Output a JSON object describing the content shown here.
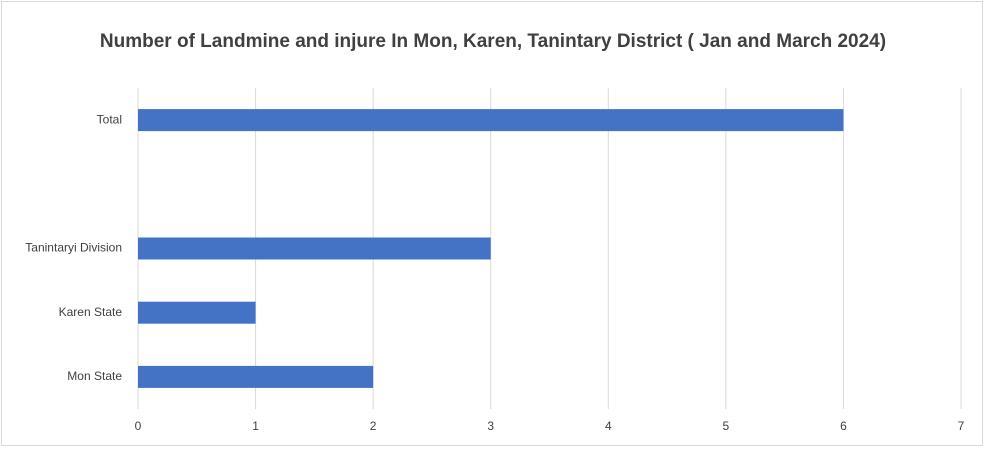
{
  "chart_data": {
    "type": "bar",
    "orientation": "horizontal",
    "title": "Number of Landmine and injure In Mon, Karen, Tanintary District ( Jan and March 2024)",
    "categories": [
      "Total",
      null,
      "Tanintaryi Division",
      "Karen State",
      "Mon State"
    ],
    "values": [
      6,
      null,
      3,
      1,
      2
    ],
    "color": "#4472c4",
    "xlim": [
      0,
      7
    ],
    "xticks": [
      0,
      1,
      2,
      3,
      4,
      5,
      6,
      7
    ],
    "grid": true
  }
}
